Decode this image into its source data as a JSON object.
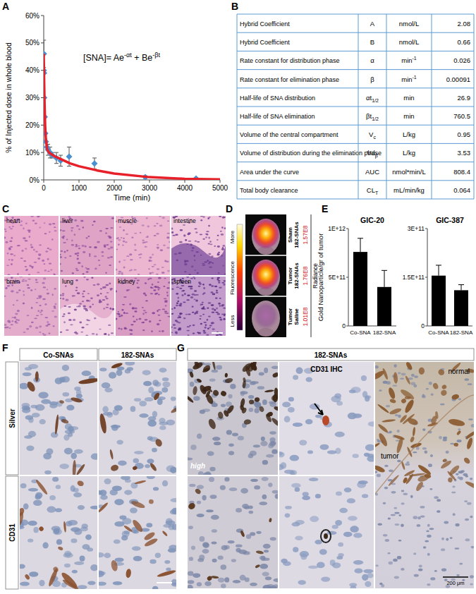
{
  "panel_labels": [
    "A",
    "B",
    "C",
    "D",
    "E",
    "F",
    "G"
  ],
  "chart_data": [
    {
      "type": "line",
      "x_label": "Time (min)",
      "y_label": "% of Injected dose in whole blood",
      "annotations": [
        {
          "text": "[SNA]= Ae",
          "sup": "-αt"
        },
        {
          "text": " + Be",
          "sup": "-βt"
        }
      ],
      "xlim": [
        0,
        5000
      ],
      "xticks": [
        0,
        1000,
        2000,
        3000,
        4000,
        5000
      ],
      "ylim": [
        0,
        60
      ],
      "yticks": [
        {
          "value": 0,
          "label": "0%"
        },
        {
          "value": 10,
          "label": "10%"
        },
        {
          "value": 20,
          "label": "20%"
        },
        {
          "value": 30,
          "label": "30%"
        },
        {
          "value": 40,
          "label": "40%"
        },
        {
          "value": 50,
          "label": "50%"
        },
        {
          "value": 60,
          "label": "60%"
        }
      ],
      "series": [
        {
          "type": "scatter",
          "marker": "diamond",
          "color": "#4a8fd0",
          "x": [
            2,
            5,
            10,
            15,
            30,
            45,
            60,
            90,
            120,
            180,
            240,
            360,
            480,
            720,
            1440,
            2880,
            4320
          ],
          "values": [
            40,
            46,
            39,
            30,
            23,
            17,
            14,
            12,
            11,
            10,
            9,
            8,
            7,
            8.5,
            6,
            1,
            0.5
          ],
          "error": [
            0,
            5,
            0,
            0,
            0,
            0,
            0,
            0,
            2,
            2,
            1,
            2,
            2,
            3.5,
            2,
            0.5,
            0.3
          ]
        },
        {
          "type": "line",
          "color": "#e8202a",
          "x": [
            0,
            20,
            40,
            60,
            100,
            150,
            200,
            300,
            500,
            750,
            1000,
            1500,
            2000,
            3000,
            4000,
            5000
          ],
          "values": [
            46,
            30,
            20,
            15,
            11,
            10,
            9.5,
            8.7,
            7.5,
            6,
            5,
            3.5,
            2.3,
            1,
            0.4,
            0.2
          ]
        }
      ]
    },
    {
      "type": "bar",
      "title": "GIC-20",
      "y_label": "Gold Nanoparticle/gr of tumor",
      "categories": [
        "Co-SNA",
        "182-SNA"
      ],
      "values": [
        760000000000.0,
        400000000000.0
      ],
      "error": [
        140000000000.0,
        170000000000.0
      ],
      "color": "#000000",
      "ylim": [
        0,
        1000000000000.0
      ],
      "yticks": [
        0,
        {
          "value": 500000000000.0,
          "label": "5E+11"
        },
        {
          "value": 1000000000000.0,
          "label": "1E+12"
        }
      ]
    },
    {
      "type": "bar",
      "title": "GIC-387",
      "categories": [
        "Co-SNA",
        "182-SNA"
      ],
      "values": [
        155000000000.0,
        110000000000.0
      ],
      "error": [
        32000000000.0,
        17000000000.0
      ],
      "color": "#000000",
      "ylim": [
        0,
        300000000000.0
      ],
      "yticks": [
        0,
        {
          "value": 150000000000.0,
          "label": "1.5E+11"
        },
        {
          "value": 300000000000.0,
          "label": "3E+11"
        }
      ]
    }
  ],
  "table": {
    "rows": [
      [
        "Hybrid Coefficient",
        "A",
        "nmol/L",
        "2.08"
      ],
      [
        "Hybrid Coefficient",
        "B",
        "nmol/L",
        "0.66"
      ],
      [
        "Rate constant for distribution phase",
        "α",
        {
          "text": "min",
          "sup": "-1"
        },
        "0.026"
      ],
      [
        "Rate constant for elimination phase",
        "β",
        {
          "text": "min",
          "sup": "-1"
        },
        "0.00091"
      ],
      [
        "Half-life of SNA distribution",
        {
          "text": "αt",
          "sub": "1/2"
        },
        "min",
        "26.9"
      ],
      [
        "Half-life of SNA elimination",
        {
          "text": "βt",
          "sub": "1/2"
        },
        "min",
        "760.5"
      ],
      [
        "Volume of the central compartment",
        {
          "text": "V",
          "sub": "c"
        },
        "L/kg",
        "0.95"
      ],
      [
        "Volume of distribution during the elimination phase",
        {
          "text": "Vd",
          "sub": "β"
        },
        "L/kg",
        "3.53"
      ],
      [
        "Area under the curve",
        "AUC",
        "nmol*min/L",
        "808.4"
      ],
      [
        "Total body clearance",
        {
          "text": "CL",
          "sub": "T"
        },
        "mL/min/kg",
        "0.064"
      ]
    ]
  },
  "histology": {
    "labels": [
      "heart",
      "liver",
      "muscle",
      "intestine",
      "brain",
      "lung",
      "kidney",
      "spleen"
    ]
  },
  "imaging": {
    "scale": {
      "top": "More",
      "middle": "Fluorescence",
      "bottom": "Less"
    },
    "rows": [
      {
        "label": [
          "Sham",
          "182-SNAs"
        ],
        "radiance": "1.57E8"
      },
      {
        "label": [
          "Tumor",
          "182-SNAs"
        ],
        "radiance": "1.76E8"
      },
      {
        "label": [
          "Tumor",
          "Saline"
        ],
        "radiance": "1.01E8"
      }
    ],
    "radiance_label": "Radiance"
  },
  "panel_f": {
    "columns": [
      "Co-SNAs",
      "182-SNAs"
    ],
    "rows": [
      "Silver",
      "CD31"
    ]
  },
  "panel_g": {
    "header": "182-SNAs",
    "labels": [
      "high",
      "CD31 IHC",
      "normal",
      "tumor",
      "200 μm"
    ]
  }
}
